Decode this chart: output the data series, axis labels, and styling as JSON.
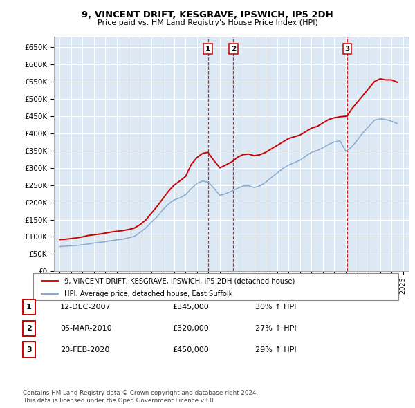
{
  "title": "9, VINCENT DRIFT, KESGRAVE, IPSWICH, IP5 2DH",
  "subtitle": "Price paid vs. HM Land Registry's House Price Index (HPI)",
  "legend_line1": "9, VINCENT DRIFT, KESGRAVE, IPSWICH, IP5 2DH (detached house)",
  "legend_line2": "HPI: Average price, detached house, East Suffolk",
  "footer1": "Contains HM Land Registry data © Crown copyright and database right 2024.",
  "footer2": "This data is licensed under the Open Government Licence v3.0.",
  "sales": [
    {
      "num": 1,
      "date": "12-DEC-2007",
      "price": "£345,000",
      "change": "30% ↑ HPI",
      "year": 2007.95,
      "value": 345000
    },
    {
      "num": 2,
      "date": "05-MAR-2010",
      "price": "£320,000",
      "change": "27% ↑ HPI",
      "year": 2010.17,
      "value": 320000
    },
    {
      "num": 3,
      "date": "20-FEB-2020",
      "price": "£450,000",
      "change": "29% ↑ HPI",
      "year": 2020.13,
      "value": 450000
    }
  ],
  "property_color": "#cc0000",
  "hpi_color": "#88aacc",
  "plot_bg": "#dce9f5",
  "ylim": [
    0,
    680000
  ],
  "yticks": [
    0,
    50000,
    100000,
    150000,
    200000,
    250000,
    300000,
    350000,
    400000,
    450000,
    500000,
    550000,
    600000,
    650000
  ],
  "xlim": [
    1994.5,
    2025.5
  ],
  "xticks": [
    1995,
    1996,
    1997,
    1998,
    1999,
    2000,
    2001,
    2002,
    2003,
    2004,
    2005,
    2006,
    2007,
    2008,
    2009,
    2010,
    2011,
    2012,
    2013,
    2014,
    2015,
    2016,
    2017,
    2018,
    2019,
    2020,
    2021,
    2022,
    2023,
    2024,
    2025
  ],
  "property_x": [
    1995.0,
    1995.5,
    1996.0,
    1996.5,
    1997.0,
    1997.5,
    1998.0,
    1998.5,
    1999.0,
    1999.5,
    2000.0,
    2000.5,
    2001.0,
    2001.5,
    2002.0,
    2002.5,
    2003.0,
    2003.5,
    2004.0,
    2004.5,
    2005.0,
    2005.5,
    2006.0,
    2006.5,
    2007.0,
    2007.5,
    2007.95,
    2008.5,
    2009.0,
    2009.5,
    2010.17,
    2010.5,
    2011.0,
    2011.5,
    2012.0,
    2012.5,
    2013.0,
    2013.5,
    2014.0,
    2014.5,
    2015.0,
    2015.5,
    2016.0,
    2016.5,
    2017.0,
    2017.5,
    2018.0,
    2018.5,
    2019.0,
    2019.5,
    2020.13,
    2020.5,
    2021.0,
    2021.5,
    2022.0,
    2022.5,
    2023.0,
    2023.5,
    2024.0,
    2024.5
  ],
  "property_y": [
    92000,
    93000,
    95000,
    97000,
    100000,
    104000,
    106000,
    108000,
    111000,
    114000,
    116000,
    118000,
    121000,
    125000,
    135000,
    148000,
    168000,
    188000,
    210000,
    232000,
    250000,
    262000,
    275000,
    310000,
    330000,
    342000,
    345000,
    320000,
    300000,
    308000,
    320000,
    330000,
    338000,
    340000,
    335000,
    338000,
    345000,
    355000,
    365000,
    375000,
    385000,
    390000,
    395000,
    405000,
    415000,
    420000,
    430000,
    440000,
    445000,
    448000,
    450000,
    470000,
    490000,
    510000,
    530000,
    550000,
    558000,
    555000,
    555000,
    548000
  ],
  "hpi_x": [
    1995.0,
    1995.5,
    1996.0,
    1996.5,
    1997.0,
    1997.5,
    1998.0,
    1998.5,
    1999.0,
    1999.5,
    2000.0,
    2000.5,
    2001.0,
    2001.5,
    2002.0,
    2002.5,
    2003.0,
    2003.5,
    2004.0,
    2004.5,
    2005.0,
    2005.5,
    2006.0,
    2006.5,
    2007.0,
    2007.5,
    2008.0,
    2008.5,
    2009.0,
    2009.5,
    2010.0,
    2010.5,
    2011.0,
    2011.5,
    2012.0,
    2012.5,
    2013.0,
    2013.5,
    2014.0,
    2014.5,
    2015.0,
    2015.5,
    2016.0,
    2016.5,
    2017.0,
    2017.5,
    2018.0,
    2018.5,
    2019.0,
    2019.5,
    2020.0,
    2020.5,
    2021.0,
    2021.5,
    2022.0,
    2022.5,
    2023.0,
    2023.5,
    2024.0,
    2024.5
  ],
  "hpi_y": [
    72000,
    73000,
    74000,
    75000,
    77000,
    79000,
    82000,
    84000,
    86000,
    89000,
    91000,
    93000,
    97000,
    101000,
    112000,
    125000,
    142000,
    158000,
    178000,
    195000,
    207000,
    213000,
    222000,
    240000,
    255000,
    262000,
    258000,
    240000,
    220000,
    225000,
    232000,
    240000,
    247000,
    248000,
    243000,
    248000,
    258000,
    272000,
    285000,
    298000,
    308000,
    315000,
    322000,
    334000,
    345000,
    350000,
    358000,
    368000,
    375000,
    378000,
    348000,
    360000,
    380000,
    402000,
    420000,
    438000,
    442000,
    440000,
    435000,
    428000
  ]
}
